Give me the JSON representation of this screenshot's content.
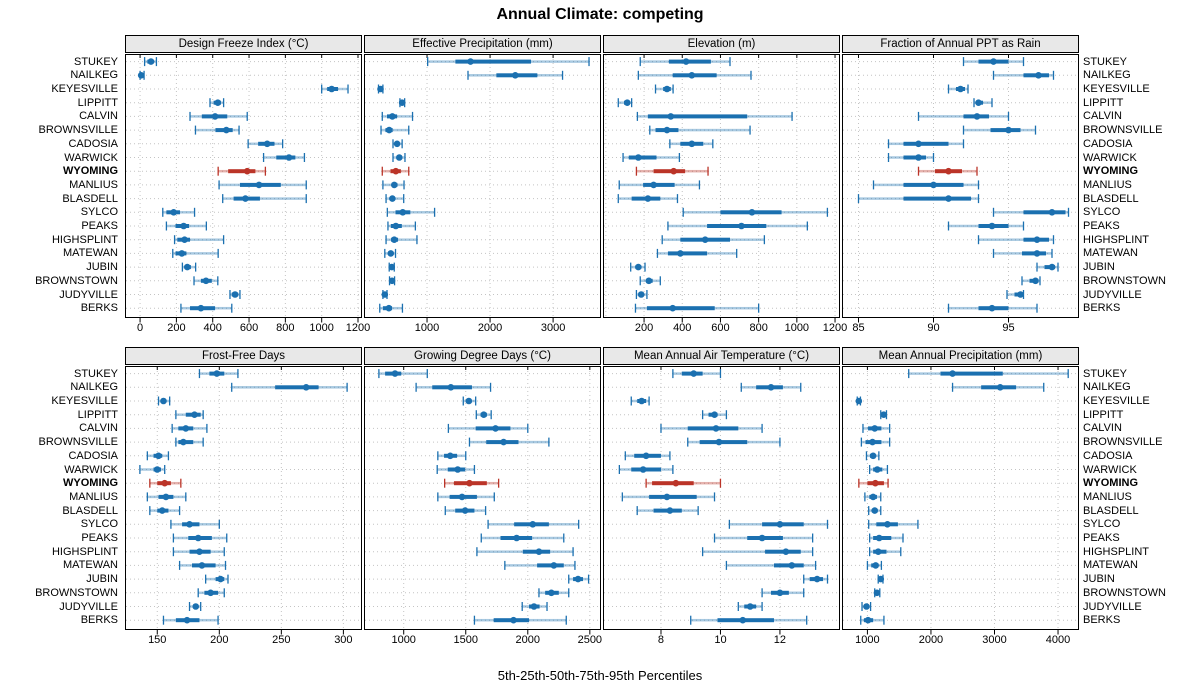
{
  "title": "Annual Climate: competing",
  "caption": "5th-25th-50th-75th-95th Percentiles",
  "highlight_site": "WYOMING",
  "sites": [
    "STUKEY",
    "NAILKEG",
    "KEYESVILLE",
    "LIPPITT",
    "CALVIN",
    "BROWNSVILLE",
    "CADOSIA",
    "WARWICK",
    "WYOMING",
    "MANLIUS",
    "BLASDELL",
    "SYLCO",
    "PEAKS",
    "HIGHSPLINT",
    "MATEWAN",
    "JUBIN",
    "BROWNSTOWN",
    "JUDYVILLE",
    "BERKS"
  ],
  "percentiles": [
    5,
    25,
    50,
    75,
    95
  ],
  "colors": {
    "series": "#1b70b0",
    "highlight": "#bb3428",
    "band_opacity": 0.38,
    "grid": "#c4c4c4",
    "strip_bg": "#e8e8e8",
    "border": "#000000"
  },
  "chart_data": [
    {
      "type": "interval-dotplot",
      "title": "Design Freeze Index (°C)",
      "xlim": [
        -83,
        1222
      ],
      "ticks": [
        0,
        200,
        400,
        600,
        800,
        1000,
        1200
      ],
      "grid": [
        0,
        200,
        400,
        600,
        800,
        1000,
        1200
      ],
      "values": [
        [
          25,
          40,
          60,
          75,
          90
        ],
        [
          0,
          3,
          6,
          12,
          22
        ],
        [
          1000,
          1030,
          1055,
          1090,
          1145
        ],
        [
          385,
          405,
          428,
          445,
          460
        ],
        [
          275,
          340,
          413,
          480,
          590
        ],
        [
          305,
          415,
          475,
          510,
          545
        ],
        [
          595,
          650,
          700,
          740,
          785
        ],
        [
          680,
          750,
          820,
          855,
          905
        ],
        [
          430,
          485,
          590,
          635,
          690
        ],
        [
          435,
          550,
          655,
          775,
          915
        ],
        [
          455,
          515,
          580,
          660,
          915
        ],
        [
          125,
          145,
          185,
          220,
          300
        ],
        [
          145,
          195,
          240,
          270,
          365
        ],
        [
          190,
          205,
          245,
          275,
          460
        ],
        [
          180,
          195,
          230,
          255,
          430
        ],
        [
          233,
          245,
          260,
          280,
          306
        ],
        [
          297,
          335,
          363,
          395,
          428
        ],
        [
          495,
          505,
          523,
          540,
          550
        ],
        [
          225,
          275,
          335,
          413,
          505
        ]
      ]
    },
    {
      "type": "interval-dotplot",
      "title": "Effective Precipitation (mm)",
      "xlim": [
        0,
        3760
      ],
      "ticks": [
        1000,
        2000,
        3000
      ],
      "grid": [
        0,
        1000,
        2000,
        3000
      ],
      "values": [
        [
          1010,
          1450,
          1690,
          2650,
          3570
        ],
        [
          1650,
          2100,
          2400,
          2750,
          3150
        ],
        [
          230,
          250,
          262,
          275,
          300
        ],
        [
          570,
          590,
          605,
          620,
          645
        ],
        [
          290,
          365,
          450,
          525,
          770
        ],
        [
          270,
          340,
          400,
          455,
          710
        ],
        [
          460,
          500,
          525,
          555,
          605
        ],
        [
          460,
          520,
          560,
          600,
          650
        ],
        [
          290,
          420,
          505,
          585,
          710
        ],
        [
          300,
          440,
          480,
          530,
          635
        ],
        [
          350,
          420,
          450,
          490,
          630
        ],
        [
          370,
          500,
          615,
          735,
          1120
        ],
        [
          380,
          425,
          505,
          600,
          815
        ],
        [
          350,
          430,
          480,
          540,
          840
        ],
        [
          330,
          390,
          425,
          460,
          500
        ],
        [
          400,
          420,
          440,
          455,
          480
        ],
        [
          405,
          425,
          445,
          462,
          485
        ],
        [
          300,
          315,
          330,
          345,
          365
        ],
        [
          250,
          300,
          395,
          445,
          610
        ]
      ]
    },
    {
      "type": "interval-dotplot",
      "title": "Elevation (m)",
      "xlim": [
        -15,
        1226
      ],
      "ticks": [
        200,
        400,
        600,
        800,
        1000,
        1200
      ],
      "grid": [
        0,
        200,
        400,
        600,
        800,
        1000,
        1200
      ],
      "values": [
        [
          180,
          330,
          420,
          550,
          650
        ],
        [
          170,
          350,
          450,
          580,
          760
        ],
        [
          260,
          300,
          320,
          340,
          352
        ],
        [
          65,
          95,
          112,
          125,
          135
        ],
        [
          165,
          220,
          340,
          740,
          975
        ],
        [
          230,
          260,
          320,
          380,
          755
        ],
        [
          335,
          390,
          450,
          510,
          560
        ],
        [
          90,
          120,
          170,
          265,
          385
        ],
        [
          160,
          250,
          355,
          415,
          535
        ],
        [
          70,
          195,
          250,
          360,
          490
        ],
        [
          65,
          135,
          220,
          285,
          375
        ],
        [
          405,
          600,
          765,
          920,
          1160
        ],
        [
          325,
          530,
          710,
          840,
          1055
        ],
        [
          295,
          390,
          520,
          650,
          830
        ],
        [
          270,
          325,
          390,
          530,
          685
        ],
        [
          130,
          155,
          170,
          185,
          205
        ],
        [
          180,
          210,
          225,
          245,
          285
        ],
        [
          160,
          175,
          185,
          195,
          215
        ],
        [
          155,
          215,
          350,
          570,
          800
        ]
      ]
    },
    {
      "type": "interval-dotplot",
      "title": "Fraction of Annual PPT as Rain",
      "xlim": [
        83.9,
        99.7
      ],
      "ticks": [
        85,
        90,
        95
      ],
      "grid": [
        85,
        90,
        95
      ],
      "values": [
        [
          92,
          93,
          94,
          95,
          96
        ],
        [
          94,
          96,
          97,
          97.7,
          98
        ],
        [
          91,
          91.5,
          91.8,
          92.1,
          92.3
        ],
        [
          92.7,
          92.9,
          93,
          93.3,
          93.9
        ],
        [
          89,
          92,
          92.9,
          93.7,
          95
        ],
        [
          92,
          93.8,
          95,
          95.8,
          96.8
        ],
        [
          87,
          88,
          89,
          91,
          92
        ],
        [
          87,
          88,
          89,
          89.5,
          90
        ],
        [
          89,
          90.1,
          91,
          91.9,
          92.9
        ],
        [
          86,
          88,
          90,
          92,
          93
        ],
        [
          85,
          88,
          91,
          92.5,
          93
        ],
        [
          94,
          96,
          97.9,
          98.8,
          99
        ],
        [
          91,
          93,
          93.9,
          95,
          96
        ],
        [
          93,
          96,
          96.9,
          97.7,
          98
        ],
        [
          94,
          95.9,
          96.9,
          97.5,
          97.9
        ],
        [
          96.9,
          97.4,
          97.9,
          98.1,
          98.3
        ],
        [
          95.9,
          96.4,
          96.8,
          97,
          97.1
        ],
        [
          94.9,
          95.4,
          95.8,
          95.9,
          96
        ],
        [
          91,
          93,
          93.9,
          95,
          96.9
        ]
      ]
    },
    {
      "type": "interval-dotplot",
      "title": "Frost-Free Days",
      "xlim": [
        124,
        315
      ],
      "ticks": [
        150,
        200,
        250,
        300
      ],
      "grid": [
        150,
        200,
        250,
        300
      ],
      "values": [
        [
          184,
          192,
          198,
          204,
          215
        ],
        [
          210,
          245,
          270,
          280,
          303
        ],
        [
          151,
          153,
          155,
          157,
          160
        ],
        [
          165,
          173,
          180,
          185,
          187
        ],
        [
          162,
          167,
          173,
          179,
          190
        ],
        [
          165,
          167,
          171,
          179,
          187
        ],
        [
          142,
          147,
          151,
          154,
          159
        ],
        [
          136,
          147,
          150,
          153,
          156
        ],
        [
          144,
          150,
          156,
          161,
          169
        ],
        [
          142,
          151,
          157,
          163,
          173
        ],
        [
          144,
          150,
          154,
          159,
          168
        ],
        [
          161,
          170,
          176,
          184,
          200
        ],
        [
          163,
          175,
          183,
          194,
          206
        ],
        [
          163,
          176,
          184,
          193,
          204
        ],
        [
          168,
          178,
          186,
          197,
          205
        ],
        [
          189,
          197,
          201,
          204,
          207
        ],
        [
          183,
          188,
          193,
          199,
          204
        ],
        [
          176,
          179,
          181,
          183,
          185
        ],
        [
          155,
          165,
          174,
          184,
          199
        ]
      ]
    },
    {
      "type": "interval-dotplot",
      "title": "Growing Degree Days (°C)",
      "xlim": [
        680,
        2590
      ],
      "ticks": [
        1000,
        1500,
        2000,
        2500
      ],
      "grid": [
        1000,
        1500,
        2000,
        2500
      ],
      "values": [
        [
          800,
          850,
          930,
          980,
          1190
        ],
        [
          1100,
          1230,
          1380,
          1550,
          1700
        ],
        [
          1480,
          1505,
          1525,
          1545,
          1580
        ],
        [
          1585,
          1620,
          1645,
          1670,
          1705
        ],
        [
          1360,
          1580,
          1740,
          1860,
          2000
        ],
        [
          1530,
          1665,
          1805,
          1925,
          2170
        ],
        [
          1275,
          1325,
          1375,
          1430,
          1500
        ],
        [
          1270,
          1355,
          1435,
          1495,
          1570
        ],
        [
          1330,
          1405,
          1530,
          1670,
          1765
        ],
        [
          1275,
          1370,
          1470,
          1590,
          1730
        ],
        [
          1335,
          1415,
          1495,
          1570,
          1660
        ],
        [
          1680,
          1890,
          2040,
          2170,
          2410
        ],
        [
          1625,
          1780,
          1910,
          2035,
          2290
        ],
        [
          1590,
          1960,
          2090,
          2180,
          2365
        ],
        [
          1815,
          2075,
          2210,
          2290,
          2380
        ],
        [
          2330,
          2365,
          2405,
          2445,
          2490
        ],
        [
          2090,
          2140,
          2190,
          2250,
          2330
        ],
        [
          1955,
          2010,
          2050,
          2095,
          2155
        ],
        [
          1570,
          1725,
          1885,
          2010,
          2310
        ]
      ]
    },
    {
      "type": "interval-dotplot",
      "title": "Mean Annual Air Temperature (°C)",
      "xlim": [
        6.05,
        14.02
      ],
      "ticks": [
        8,
        10,
        12
      ],
      "grid": [
        8,
        10,
        12
      ],
      "values": [
        [
          8.4,
          8.7,
          9.1,
          9.4,
          10.0
        ],
        [
          10.7,
          11.2,
          11.7,
          12.1,
          12.7
        ],
        [
          7.0,
          7.2,
          7.35,
          7.5,
          7.6
        ],
        [
          9.4,
          9.6,
          9.8,
          9.9,
          10.2
        ],
        [
          8.0,
          8.9,
          9.85,
          10.6,
          11.4
        ],
        [
          8.9,
          9.3,
          9.95,
          10.9,
          12.0
        ],
        [
          6.8,
          7.1,
          7.5,
          8.0,
          8.3
        ],
        [
          6.6,
          7.0,
          7.4,
          8.0,
          8.4
        ],
        [
          7.5,
          7.7,
          8.5,
          9.1,
          10.0
        ],
        [
          6.7,
          7.6,
          8.2,
          9.2,
          9.8
        ],
        [
          7.2,
          7.75,
          8.3,
          8.7,
          9.25
        ],
        [
          10.3,
          11.4,
          12.0,
          12.8,
          13.6
        ],
        [
          9.8,
          10.9,
          11.4,
          12.1,
          13.1
        ],
        [
          9.4,
          11.5,
          12.2,
          12.7,
          13.1
        ],
        [
          10.2,
          11.8,
          12.4,
          12.8,
          13.2
        ],
        [
          12.8,
          13.0,
          13.25,
          13.45,
          13.6
        ],
        [
          11.4,
          11.7,
          12.0,
          12.3,
          12.8
        ],
        [
          10.6,
          10.8,
          11.0,
          11.2,
          11.4
        ],
        [
          9.0,
          9.9,
          10.75,
          11.8,
          12.9
        ]
      ]
    },
    {
      "type": "interval-dotplot",
      "title": "Mean Annual Precipitation (mm)",
      "xlim": [
        600,
        4330
      ],
      "ticks": [
        1000,
        2000,
        3000,
        4000
      ],
      "grid": [
        1000,
        2000,
        3000,
        4000
      ],
      "values": [
        [
          1650,
          2150,
          2340,
          3130,
          4160
        ],
        [
          2340,
          2790,
          3090,
          3340,
          3775
        ],
        [
          840,
          855,
          865,
          875,
          890
        ],
        [
          1210,
          1240,
          1257,
          1275,
          1300
        ],
        [
          930,
          1010,
          1115,
          1220,
          1350
        ],
        [
          905,
          970,
          1080,
          1220,
          1350
        ],
        [
          985,
          1040,
          1090,
          1125,
          1180
        ],
        [
          1035,
          1090,
          1155,
          1235,
          1315
        ],
        [
          865,
          1000,
          1125,
          1260,
          1325
        ],
        [
          960,
          1030,
          1090,
          1150,
          1210
        ],
        [
          1020,
          1070,
          1115,
          1160,
          1210
        ],
        [
          1020,
          1140,
          1315,
          1480,
          1795
        ],
        [
          1035,
          1090,
          1185,
          1375,
          1560
        ],
        [
          1035,
          1090,
          1170,
          1300,
          1525
        ],
        [
          1000,
          1060,
          1130,
          1175,
          1220
        ],
        [
          1170,
          1190,
          1210,
          1225,
          1245
        ],
        [
          1115,
          1135,
          1150,
          1170,
          1195
        ],
        [
          915,
          950,
          985,
          1010,
          1050
        ],
        [
          895,
          945,
          1010,
          1090,
          1260
        ]
      ]
    }
  ]
}
